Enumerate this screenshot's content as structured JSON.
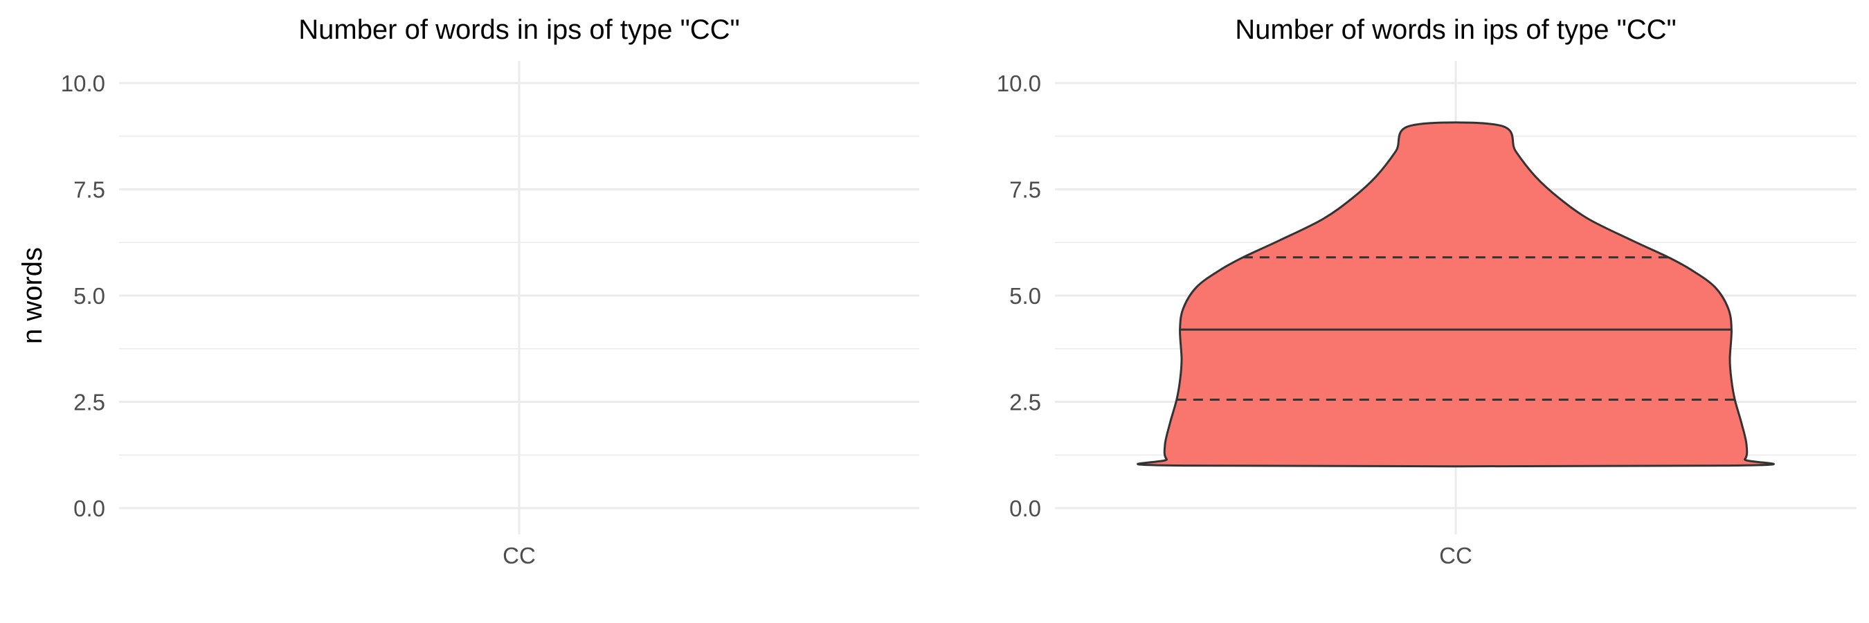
{
  "chart_data": [
    {
      "type": "violin",
      "title": "Number of words in ips of type \"CC\"",
      "xlabel": "",
      "ylabel": "n words",
      "categories": [
        "CC"
      ],
      "ylim": [
        0,
        10
      ],
      "yticks": [
        0.0,
        2.5,
        5.0,
        7.5,
        10.0
      ],
      "ytick_labels": [
        "0.0",
        "2.5",
        "5.0",
        "7.5",
        "10.0"
      ],
      "grid": true,
      "violins": []
    },
    {
      "type": "violin",
      "title": "Number of words in ips of type \"CC\"",
      "xlabel": "",
      "ylabel": "",
      "categories": [
        "CC"
      ],
      "ylim": [
        0,
        10
      ],
      "yticks": [
        0.0,
        2.5,
        5.0,
        7.5,
        10.0
      ],
      "ytick_labels": [
        "0.0",
        "2.5",
        "5.0",
        "7.5",
        "10.0"
      ],
      "grid": true,
      "violins": [
        {
          "category": "CC",
          "fill": "#F8766D",
          "outline": "#333333",
          "min": 1,
          "max": 9,
          "quantiles": {
            "q25": 2.55,
            "median": 4.2,
            "q75": 5.9
          },
          "density_profile": [
            {
              "y": 1.0,
              "halfwidth": 0.82
            },
            {
              "y": 1.15,
              "halfwidth": 0.87
            },
            {
              "y": 1.5,
              "halfwidth": 0.875
            },
            {
              "y": 2.0,
              "halfwidth": 0.86
            },
            {
              "y": 2.55,
              "halfwidth": 0.84
            },
            {
              "y": 3.0,
              "halfwidth": 0.83
            },
            {
              "y": 3.5,
              "halfwidth": 0.825
            },
            {
              "y": 4.2,
              "halfwidth": 0.83
            },
            {
              "y": 4.7,
              "halfwidth": 0.82
            },
            {
              "y": 5.2,
              "halfwidth": 0.78
            },
            {
              "y": 5.6,
              "halfwidth": 0.71
            },
            {
              "y": 5.9,
              "halfwidth": 0.64
            },
            {
              "y": 6.3,
              "halfwidth": 0.53
            },
            {
              "y": 6.8,
              "halfwidth": 0.4
            },
            {
              "y": 7.3,
              "halfwidth": 0.31
            },
            {
              "y": 7.8,
              "halfwidth": 0.24
            },
            {
              "y": 8.4,
              "halfwidth": 0.18
            },
            {
              "y": 9.0,
              "halfwidth": 0.135
            }
          ]
        }
      ]
    }
  ]
}
